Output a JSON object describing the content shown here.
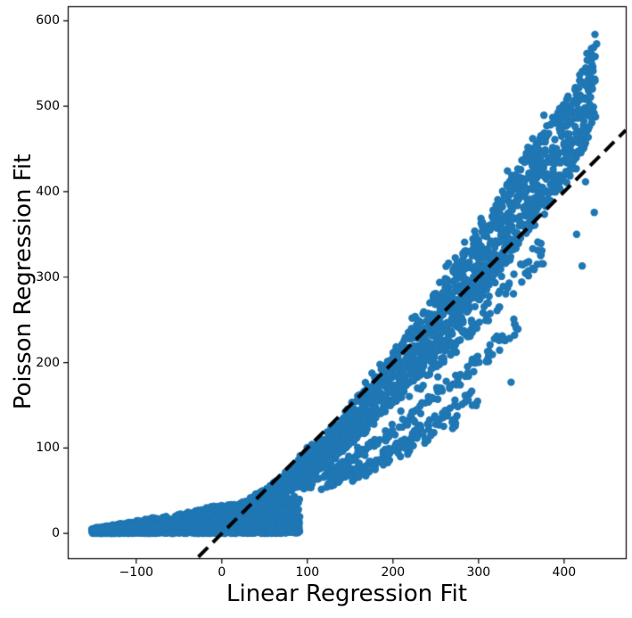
{
  "chart_data": {
    "type": "scatter",
    "title": "",
    "xlabel": "Linear Regression Fit",
    "ylabel": "Poisson Regression Fit",
    "xlim": [
      -180,
      472
    ],
    "ylim": [
      -29,
      617
    ],
    "xticks": {
      "values": [
        -100,
        0,
        100,
        200,
        300,
        400
      ],
      "labels": [
        "−100",
        "0",
        "100",
        "200",
        "300",
        "400"
      ]
    },
    "yticks": {
      "values": [
        0,
        100,
        200,
        300,
        400,
        500,
        600
      ],
      "labels": [
        "0",
        "100",
        "200",
        "300",
        "400",
        "500",
        "600"
      ]
    },
    "grid": false,
    "legend_visible": false,
    "marker": {
      "color": "#1f77b4",
      "radius": 4.2
    },
    "identity_line": {
      "x": [
        -180,
        472
      ],
      "y": [
        -180,
        472
      ],
      "color": "#000000",
      "width": 4,
      "dash": [
        15,
        8
      ]
    },
    "axes_style": {
      "spine_color": "#000000",
      "tick_color": "#000000",
      "tick_length": 5.5,
      "background": "#ffffff"
    },
    "scatter_generator": {
      "seed": 7,
      "top_curve": [
        [
          -150,
          6
        ],
        [
          -100,
          9
        ],
        [
          -50,
          15
        ],
        [
          0,
          25
        ],
        [
          50,
          52
        ],
        [
          100,
          97
        ],
        [
          150,
          152
        ],
        [
          200,
          212
        ],
        [
          250,
          283
        ],
        [
          300,
          358
        ],
        [
          350,
          438
        ],
        [
          400,
          505
        ],
        [
          420,
          538
        ],
        [
          437,
          585
        ]
      ],
      "main_band": {
        "n": 2600,
        "x_min": -150,
        "x_max": 437,
        "lower_frac_start": 0.55,
        "lower_frac_end": 0.82
      },
      "flat_cloud": {
        "n": 1600,
        "x_min": -152,
        "x_max": 92,
        "heights": [
          [
            -152,
            5
          ],
          [
            -120,
            11
          ],
          [
            -70,
            19
          ],
          [
            -20,
            30
          ],
          [
            30,
            37
          ],
          [
            92,
            48
          ]
        ]
      },
      "streaks": [
        {
          "frac": 0.57,
          "x0": 95,
          "x1": 345,
          "n": 170
        },
        {
          "frac": 0.47,
          "x0": 115,
          "x1": 292,
          "n": 110
        },
        {
          "frac": 0.42,
          "x0": 145,
          "x1": 302,
          "n": 45
        },
        {
          "frac": 0.7,
          "x0": 230,
          "x1": 382,
          "n": 85
        }
      ],
      "outliers": [
        [
          436,
          584
        ],
        [
          438,
          573
        ],
        [
          431,
          561
        ],
        [
          434,
          558
        ],
        [
          338,
          177
        ],
        [
          150,
          68
        ],
        [
          160,
          66
        ]
      ]
    }
  }
}
